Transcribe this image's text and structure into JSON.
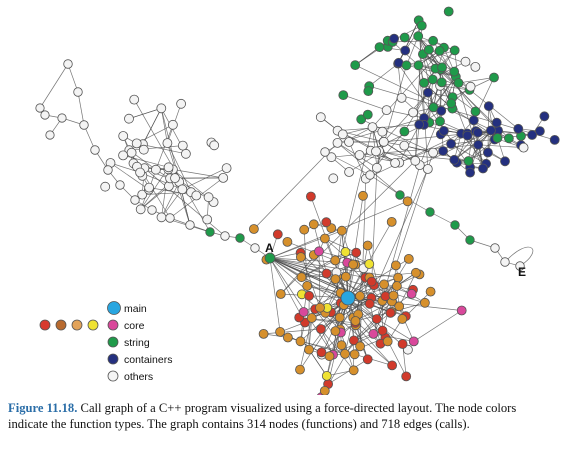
{
  "caption": {
    "label": "Figure 11.18.",
    "text": " Call graph of a C++ program visualized using a force-directed layout. The node colors indicate the function types. The graph contains 314 nodes (functions) and 718 edges (calls)."
  },
  "node_labels": {
    "a": "A",
    "e": "E"
  },
  "legend": {
    "items": [
      {
        "label": "main",
        "color": "#29a6e0"
      },
      {
        "label": "core",
        "color": "#d9489b"
      },
      {
        "label": "string",
        "color": "#1f9a4a"
      },
      {
        "label": "containers",
        "color": "#24307f"
      },
      {
        "label": "others",
        "color": "#f4f4f4"
      }
    ],
    "core_swatches": [
      "#d83a2e",
      "#b86a2e",
      "#e2a35a",
      "#efe233",
      "#d9489b"
    ]
  },
  "colors": {
    "orange": "#d6902c",
    "red": "#d13a2b",
    "yellow": "#efe233",
    "pink": "#d9489b",
    "green": "#1f9a4a",
    "navy": "#24307f",
    "white": "#f4f4f4",
    "main": "#29a6e0"
  }
}
